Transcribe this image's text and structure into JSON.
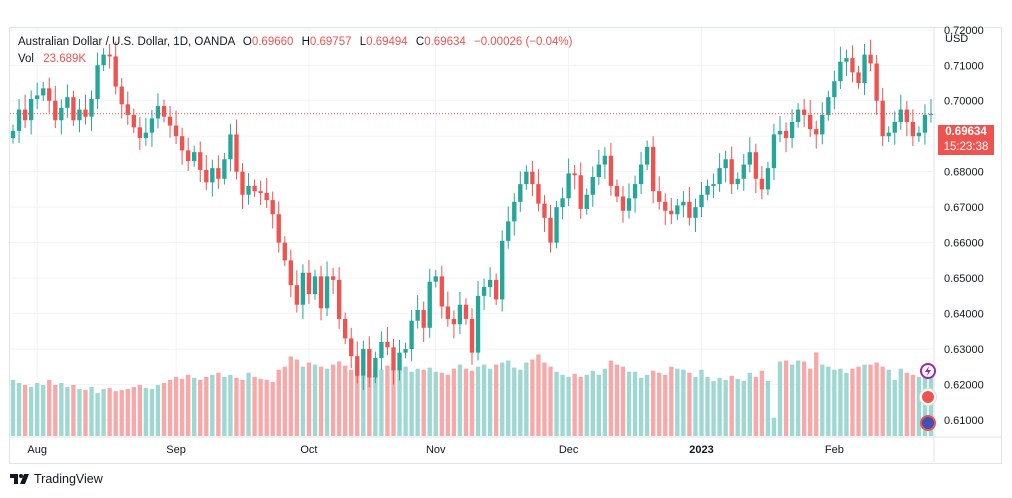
{
  "legend": {
    "symbol": "Australian Dollar / U.S. Dollar, 1D, OANDA",
    "o_label": "O",
    "o": "0.69660",
    "h_label": "H",
    "h": "0.69757",
    "l_label": "L",
    "l": "0.69494",
    "c_label": "C",
    "c": "0.69634",
    "change": "−0.00026 (−0.04%)",
    "vol_label": "Vol",
    "vol": "23.689K"
  },
  "axis": {
    "currency": "USD"
  },
  "price_tag": {
    "price": "0.69634",
    "countdown": "15:23:38"
  },
  "footer": {
    "brand": "TradingView"
  },
  "colors": {
    "up": "#26a69a",
    "down": "#ef5350",
    "vol_up": "#9fd7d2",
    "vol_down": "#f6a9a8",
    "grid": "#f0f3fa"
  },
  "chart_data": {
    "type": "candlestick",
    "y_ticks": [
      "0.61000",
      "0.62000",
      "0.63000",
      "0.64000",
      "0.65000",
      "0.66000",
      "0.67000",
      "0.68000",
      "0.69000",
      "0.70000",
      "0.71000",
      "0.72000"
    ],
    "ylim": [
      0.6055,
      0.7205
    ],
    "x_ticks": [
      {
        "label": "Aug",
        "index": 4
      },
      {
        "label": "Sep",
        "index": 27
      },
      {
        "label": "Oct",
        "index": 49
      },
      {
        "label": "Nov",
        "index": 70
      },
      {
        "label": "Dec",
        "index": 92
      },
      {
        "label": "2023",
        "index": 114
      },
      {
        "label": "Feb",
        "index": 136
      }
    ],
    "last_price": 0.69634,
    "close": [
      0.6915,
      0.6975,
      0.6945,
      0.7005,
      0.7015,
      0.7035,
      0.7,
      0.6945,
      0.698,
      0.701,
      0.6945,
      0.6975,
      0.6955,
      0.7005,
      0.71,
      0.713,
      0.7125,
      0.704,
      0.699,
      0.696,
      0.6925,
      0.6895,
      0.691,
      0.695,
      0.6985,
      0.6955,
      0.693,
      0.69,
      0.686,
      0.683,
      0.6855,
      0.6805,
      0.677,
      0.681,
      0.678,
      0.6835,
      0.6905,
      0.68,
      0.6735,
      0.676,
      0.6745,
      0.674,
      0.672,
      0.668,
      0.66,
      0.655,
      0.648,
      0.6425,
      0.6515,
      0.6455,
      0.6505,
      0.6415,
      0.6505,
      0.6495,
      0.6385,
      0.633,
      0.628,
      0.6225,
      0.63,
      0.622,
      0.6275,
      0.632,
      0.6305,
      0.624,
      0.629,
      0.63,
      0.638,
      0.641,
      0.636,
      0.649,
      0.6505,
      0.642,
      0.6385,
      0.637,
      0.6425,
      0.6385,
      0.629,
      0.645,
      0.6475,
      0.6495,
      0.644,
      0.6605,
      0.666,
      0.6715,
      0.6765,
      0.68,
      0.6765,
      0.671,
      0.667,
      0.66,
      0.67,
      0.6725,
      0.6795,
      0.679,
      0.6695,
      0.6735,
      0.6785,
      0.682,
      0.6845,
      0.676,
      0.673,
      0.669,
      0.6725,
      0.6765,
      0.682,
      0.687,
      0.6745,
      0.6715,
      0.669,
      0.668,
      0.6705,
      0.6715,
      0.667,
      0.67,
      0.6735,
      0.676,
      0.6765,
      0.681,
      0.6835,
      0.6765,
      0.678,
      0.682,
      0.6855,
      0.678,
      0.675,
      0.681,
      0.6905,
      0.6915,
      0.6895,
      0.694,
      0.6975,
      0.696,
      0.692,
      0.6905,
      0.696,
      0.701,
      0.7055,
      0.711,
      0.712,
      0.708,
      0.705,
      0.713,
      0.7105,
      0.7,
      0.69,
      0.691,
      0.694,
      0.6975,
      0.694,
      0.69,
      0.691,
      0.696,
      0.6963
    ],
    "volume": [
      0.55,
      0.52,
      0.5,
      0.48,
      0.52,
      0.5,
      0.55,
      0.5,
      0.52,
      0.48,
      0.5,
      0.46,
      0.45,
      0.48,
      0.42,
      0.46,
      0.47,
      0.44,
      0.45,
      0.46,
      0.48,
      0.5,
      0.47,
      0.46,
      0.5,
      0.52,
      0.55,
      0.58,
      0.56,
      0.6,
      0.57,
      0.55,
      0.58,
      0.6,
      0.62,
      0.58,
      0.6,
      0.57,
      0.55,
      0.62,
      0.58,
      0.56,
      0.55,
      0.53,
      0.65,
      0.68,
      0.78,
      0.75,
      0.68,
      0.72,
      0.7,
      0.68,
      0.66,
      0.7,
      0.73,
      0.69,
      0.65,
      0.68,
      0.66,
      0.64,
      0.66,
      0.65,
      0.69,
      0.67,
      0.66,
      0.68,
      0.63,
      0.66,
      0.65,
      0.67,
      0.63,
      0.62,
      0.6,
      0.66,
      0.7,
      0.66,
      0.64,
      0.68,
      0.7,
      0.66,
      0.7,
      0.72,
      0.74,
      0.67,
      0.65,
      0.72,
      0.75,
      0.8,
      0.72,
      0.68,
      0.63,
      0.6,
      0.58,
      0.61,
      0.58,
      0.6,
      0.64,
      0.6,
      0.66,
      0.74,
      0.7,
      0.68,
      0.63,
      0.63,
      0.57,
      0.6,
      0.64,
      0.62,
      0.6,
      0.68,
      0.66,
      0.65,
      0.62,
      0.58,
      0.65,
      0.58,
      0.54,
      0.57,
      0.55,
      0.59,
      0.56,
      0.54,
      0.62,
      0.58,
      0.64,
      0.54,
      0.18,
      0.73,
      0.74,
      0.7,
      0.74,
      0.73,
      0.66,
      0.82,
      0.7,
      0.68,
      0.65,
      0.66,
      0.62,
      0.66,
      0.68,
      0.7,
      0.7,
      0.72,
      0.68,
      0.65,
      0.55,
      0.66,
      0.62,
      0.6,
      0.58,
      0.63,
      0.66
    ]
  }
}
